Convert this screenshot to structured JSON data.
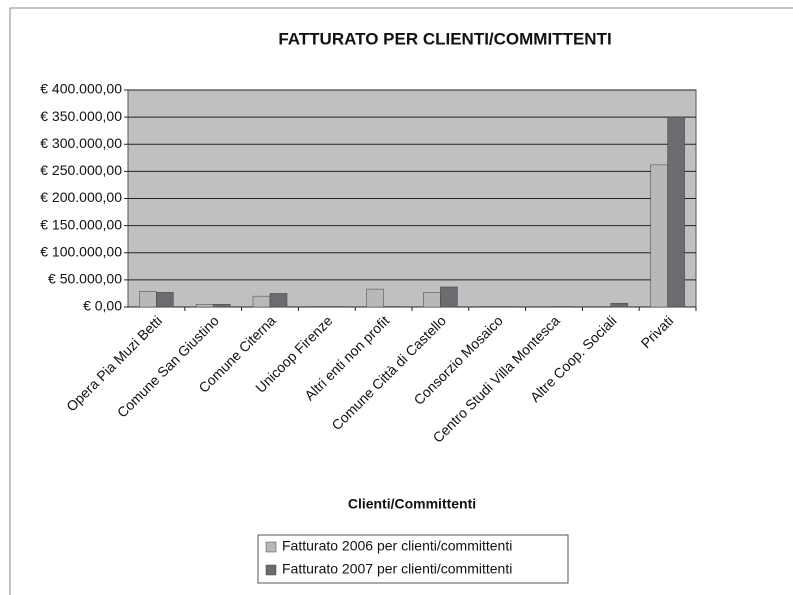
{
  "chart_data": {
    "type": "bar",
    "title": "FATTURATO PER CLIENTI/COMMITTENTI",
    "x_label": "Clienti/Committenti",
    "categories": [
      "Opera Pia Muzi Betti",
      "Comune San Giustino",
      "Comune Citerna",
      "Unicoop Firenze",
      "Altri enti non profit",
      "Comune Città di Castello",
      "Consorzio Mosaico",
      "Centro Studi Villa Montesca",
      "Altre Coop. Sociali",
      "Privati"
    ],
    "series": [
      {
        "name": "Fatturato 2006 per clienti/committenti",
        "color": "#b8b8b8",
        "values": [
          29000,
          5000,
          20000,
          1000,
          33000,
          27000,
          1000,
          0,
          0,
          262000
        ]
      },
      {
        "name": "Fatturato 2007 per clienti/committenti",
        "color": "#6c6c70",
        "values": [
          27000,
          5000,
          25000,
          1000,
          1000,
          37000,
          1000,
          1000,
          7000,
          350000
        ]
      }
    ],
    "ylim": [
      0,
      400000
    ],
    "yticks": [
      {
        "value": 0,
        "label": "€ 0,00"
      },
      {
        "value": 50000,
        "label": "€ 50.000,00"
      },
      {
        "value": 100000,
        "label": "€ 100.000,00"
      },
      {
        "value": 150000,
        "label": "€ 150.000,00"
      },
      {
        "value": 200000,
        "label": "€ 200.000,00"
      },
      {
        "value": 250000,
        "label": "€ 250.000,00"
      },
      {
        "value": 300000,
        "label": "€ 300.000,00"
      },
      {
        "value": 350000,
        "label": "€ 350.000,00"
      },
      {
        "value": 400000,
        "label": "€ 400.000,00"
      }
    ],
    "grid": true,
    "legend": "bottom"
  }
}
